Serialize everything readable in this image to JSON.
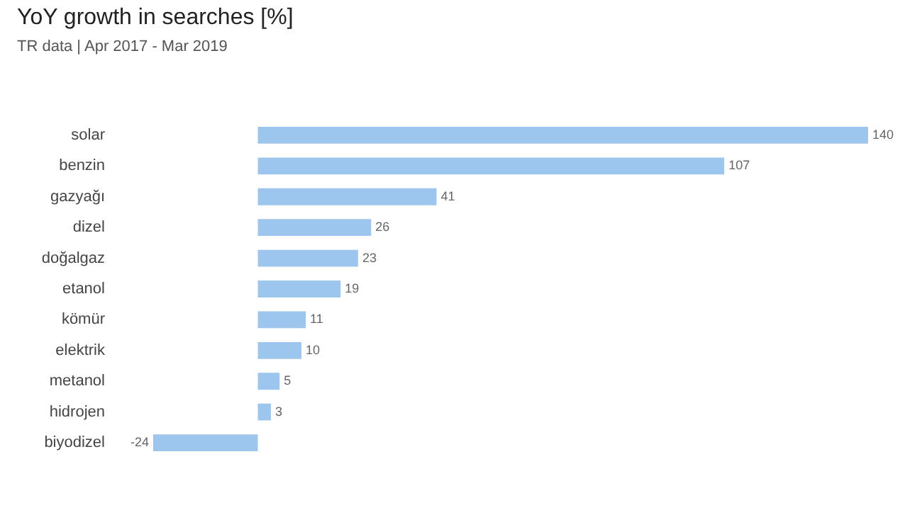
{
  "chart_data": {
    "type": "bar",
    "orientation": "horizontal",
    "title": "YoY growth in searches [%]",
    "subtitle": "TR data | Apr 2017 - Mar 2019",
    "categories": [
      "solar",
      "benzin",
      "gazyağı",
      "dizel",
      "doğalgaz",
      "etanol",
      "kömür",
      "elektrik",
      "metanol",
      "hidrojen",
      "biyodizel"
    ],
    "values": [
      140,
      107,
      41,
      26,
      23,
      19,
      11,
      10,
      5,
      3,
      -24
    ],
    "color": "#9dc6ee",
    "data_labels": true,
    "legend": false
  }
}
